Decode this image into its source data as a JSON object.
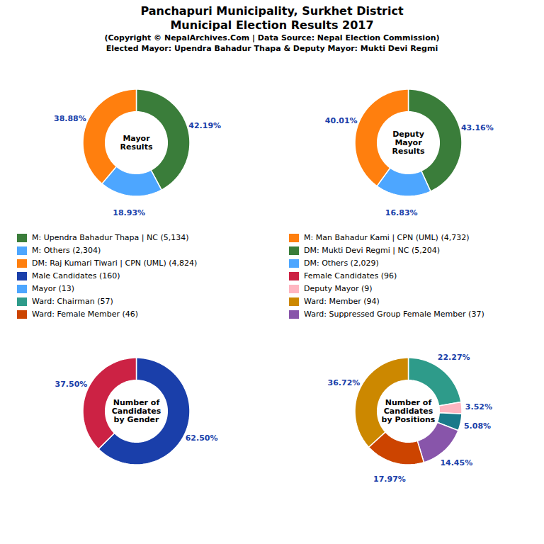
{
  "title": [
    "Panchapuri Municipality, Surkhet District",
    "Municipal Election Results 2017"
  ],
  "subtitle": [
    "(Copyright © NepalArchives.Com | Data Source: Nepal Election Commission)",
    "Elected Mayor: Upendra Bahadur Thapa & Deputy Mayor: Mukti Devi Regmi"
  ],
  "chart_data": [
    {
      "type": "pie",
      "annotation": "Mayor\nResults",
      "values": [
        42.19,
        18.93,
        38.88
      ],
      "value_labels": [
        "42.19%",
        "18.93%",
        "38.88%"
      ],
      "colors": [
        "#3a7d3a",
        "#4da6ff",
        "#ff7f0e"
      ],
      "data_labels": true
    },
    {
      "type": "pie",
      "annotation": "Deputy\nMayor\nResults",
      "values": [
        43.16,
        16.83,
        40.01
      ],
      "value_labels": [
        "43.16%",
        "16.83%",
        "40.01%"
      ],
      "colors": [
        "#3a7d3a",
        "#4da6ff",
        "#ff7f0e"
      ],
      "data_labels": true
    },
    {
      "type": "pie",
      "annotation": "Number of\nCandidates\nby Gender",
      "values": [
        62.5,
        37.5
      ],
      "value_labels": [
        "62.50%",
        "37.50%"
      ],
      "colors": [
        "#1a3faa",
        "#cc2244"
      ],
      "data_labels": true
    },
    {
      "type": "pie",
      "annotation": "Number of\nCandidates\nby Positions",
      "values": [
        22.27,
        3.52,
        5.08,
        14.45,
        17.97,
        36.72
      ],
      "value_labels": [
        "22.27%",
        "3.52%",
        "5.08%",
        "14.45%",
        "17.97%",
        "36.72%"
      ],
      "colors": [
        "#2e9b8a",
        "#ffb6c1",
        "#1a7a8a",
        "#8855aa",
        "#cc4400",
        "#cc8800"
      ],
      "data_labels": true
    }
  ],
  "legend_entries": [
    [
      {
        "label": "M: Upendra Bahadur Thapa | NC (5,134)",
        "color": "#3a7d3a"
      },
      {
        "label": "M: Others (2,304)",
        "color": "#4da6ff"
      },
      {
        "label": "DM: Raj Kumari Tiwari | CPN (UML) (4,824)",
        "color": "#ff7f0e"
      },
      {
        "label": "Male Candidates (160)",
        "color": "#1a3faa"
      },
      {
        "label": "Mayor (13)",
        "color": "#4da6ff"
      },
      {
        "label": "Ward: Chairman (57)",
        "color": "#2e9b8a"
      },
      {
        "label": "Ward: Female Member (46)",
        "color": "#cc4400"
      }
    ],
    [
      {
        "label": "M: Man Bahadur Kami | CPN (UML) (4,732)",
        "color": "#ff7f0e"
      },
      {
        "label": "DM: Mukti Devi Regmi | NC (5,204)",
        "color": "#3a7d3a"
      },
      {
        "label": "DM: Others (2,029)",
        "color": "#4da6ff"
      },
      {
        "label": "Female Candidates (96)",
        "color": "#cc2244"
      },
      {
        "label": "Deputy Mayor (9)",
        "color": "#ffb6c1"
      },
      {
        "label": "Ward: Member (94)",
        "color": "#cc8800"
      },
      {
        "label": "Ward: Suppressed Group Female Member (37)",
        "color": "#8855aa"
      }
    ]
  ]
}
